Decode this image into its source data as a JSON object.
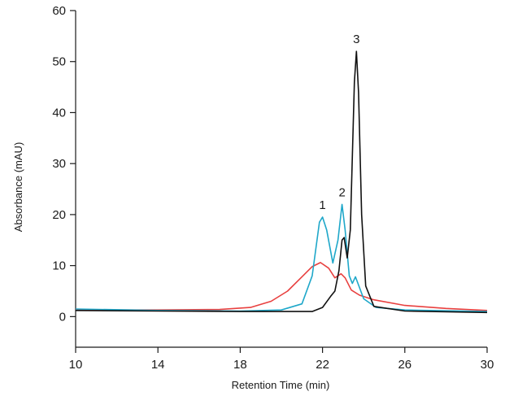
{
  "chart_data": {
    "type": "line",
    "xlabel": "Retention Time (min)",
    "ylabel": "Absorbance (mAU)",
    "xlim": [
      10,
      30
    ],
    "ylim": [
      -6,
      60
    ],
    "x_ticks": [
      10,
      14,
      18,
      22,
      26,
      30
    ],
    "y_ticks": [
      0,
      10,
      20,
      30,
      40,
      50,
      60
    ],
    "grid": false,
    "legend": "none",
    "series": [
      {
        "color": "#e8403f",
        "points": [
          [
            10,
            1.3
          ],
          [
            14,
            1.3
          ],
          [
            17,
            1.4
          ],
          [
            18.5,
            1.8
          ],
          [
            19.5,
            3
          ],
          [
            20.3,
            5
          ],
          [
            21,
            7.8
          ],
          [
            21.5,
            9.8
          ],
          [
            21.9,
            10.6
          ],
          [
            22.3,
            9.5
          ],
          [
            22.6,
            7.6
          ],
          [
            22.9,
            8.4
          ],
          [
            23.1,
            7.6
          ],
          [
            23.4,
            5.2
          ],
          [
            23.8,
            4.2
          ],
          [
            24.5,
            3.3
          ],
          [
            26,
            2.2
          ],
          [
            28,
            1.6
          ],
          [
            30,
            1.2
          ]
        ]
      },
      {
        "color": "#1ea7c9",
        "points": [
          [
            10,
            1.5
          ],
          [
            14,
            1.2
          ],
          [
            18,
            1.1
          ],
          [
            20,
            1.3
          ],
          [
            21,
            2.5
          ],
          [
            21.5,
            8
          ],
          [
            21.85,
            18.5
          ],
          [
            22,
            19.5
          ],
          [
            22.2,
            17
          ],
          [
            22.5,
            10.5
          ],
          [
            22.75,
            15
          ],
          [
            22.95,
            22
          ],
          [
            23.1,
            17
          ],
          [
            23.3,
            8
          ],
          [
            23.45,
            6.5
          ],
          [
            23.6,
            7.8
          ],
          [
            23.75,
            6.2
          ],
          [
            24,
            3.5
          ],
          [
            24.6,
            1.8
          ],
          [
            26,
            1.3
          ],
          [
            30,
            1.0
          ]
        ]
      },
      {
        "color": "#111111",
        "points": [
          [
            10,
            1.2
          ],
          [
            14,
            1.1
          ],
          [
            18,
            1.0
          ],
          [
            21.5,
            1.0
          ],
          [
            22,
            1.8
          ],
          [
            22.4,
            4
          ],
          [
            22.6,
            5
          ],
          [
            22.8,
            9
          ],
          [
            22.95,
            15
          ],
          [
            23.05,
            15.5
          ],
          [
            23.2,
            11.5
          ],
          [
            23.35,
            17
          ],
          [
            23.55,
            46
          ],
          [
            23.65,
            52
          ],
          [
            23.75,
            44
          ],
          [
            23.9,
            20
          ],
          [
            24.1,
            6
          ],
          [
            24.5,
            2
          ],
          [
            26,
            1.1
          ],
          [
            30,
            0.8
          ]
        ]
      }
    ],
    "annotations": [
      {
        "text": "1",
        "x": 22.0,
        "y": 19.5
      },
      {
        "text": "2",
        "x": 22.95,
        "y": 22.0
      },
      {
        "text": "3",
        "x": 23.65,
        "y": 52.0
      }
    ]
  }
}
